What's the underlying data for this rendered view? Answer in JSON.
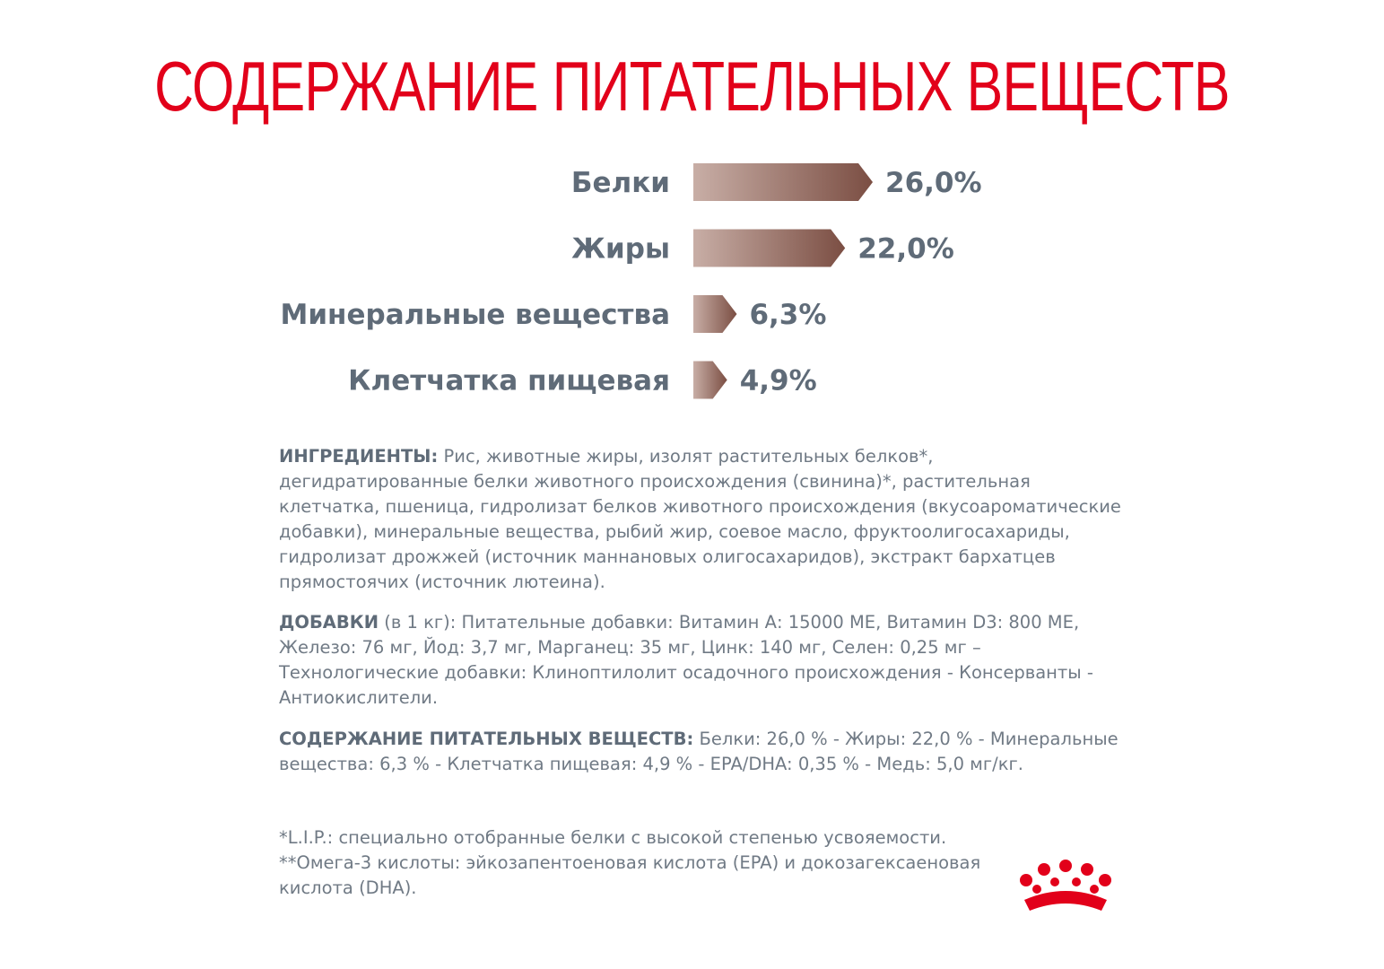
{
  "title": "СОДЕРЖАНИЕ ПИТАТЕЛЬНЫХ ВЕЩЕСТВ",
  "chart_data": {
    "type": "bar",
    "orientation": "horizontal",
    "categories": [
      "Белки",
      "Жиры",
      "Минеральные вещества",
      "Клетчатка пищевая"
    ],
    "values": [
      26.0,
      22.0,
      6.3,
      4.9
    ],
    "value_labels": [
      "26,0%",
      "22,0%",
      "6,3%",
      "4,9%"
    ],
    "unit": "%",
    "bar_color_start": "#c8aea6",
    "bar_color_end": "#7b4e43",
    "grid": false
  },
  "ingredients": {
    "label": "ИНГРЕДИЕНТЫ:",
    "text": " Рис, животные жиры, изолят растительных белков*, дегидратированные белки животного происхождения (свинина)*, растительная клетчатка, пшеница, гидролизат белков животного происхождения (вкусоароматические добавки), минеральные вещества, рыбий жир, соевое масло, фруктоолигосахариды, гидролизат дрожжей (источник маннановых олигосахаридов), экстракт бархатцев прямостоячих (источник лютеина)."
  },
  "additives": {
    "label": "ДОБАВКИ",
    "text": " (в 1 кг): Питательные добавки: Витамин А: 15000 МЕ, Витамин D3: 800 МЕ, Железо: 76 мг, Йод: 3,7 мг, Марганец: 35 мг, Цинк: 140 мг, Селен: 0,25 мг – Технологические добавки: Клиноптилолит осадочного происхождения - Консерванты - Антиокислители."
  },
  "nutrients": {
    "label": "СОДЕРЖАНИЕ ПИТАТЕЛЬНЫХ ВЕЩЕСТВ:",
    "text": " Белки: 26,0 % - Жиры: 22,0 % - Минеральные вещества: 6,3 % - Клетчатка пищевая: 4,9 % - EPA/DHA: 0,35 % - Медь: 5,0 мг/кг."
  },
  "footnotes": [
    "*L.I.P.: специально отобранные белки с высокой степенью усвояемости.",
    "**Омега-3 кислоты: эйкозапентоеновая кислота (EPA) и докозагексаеновая кислота (DHA)."
  ],
  "logo": {
    "icon": "royal-crown-icon",
    "color": "#e2001a"
  }
}
